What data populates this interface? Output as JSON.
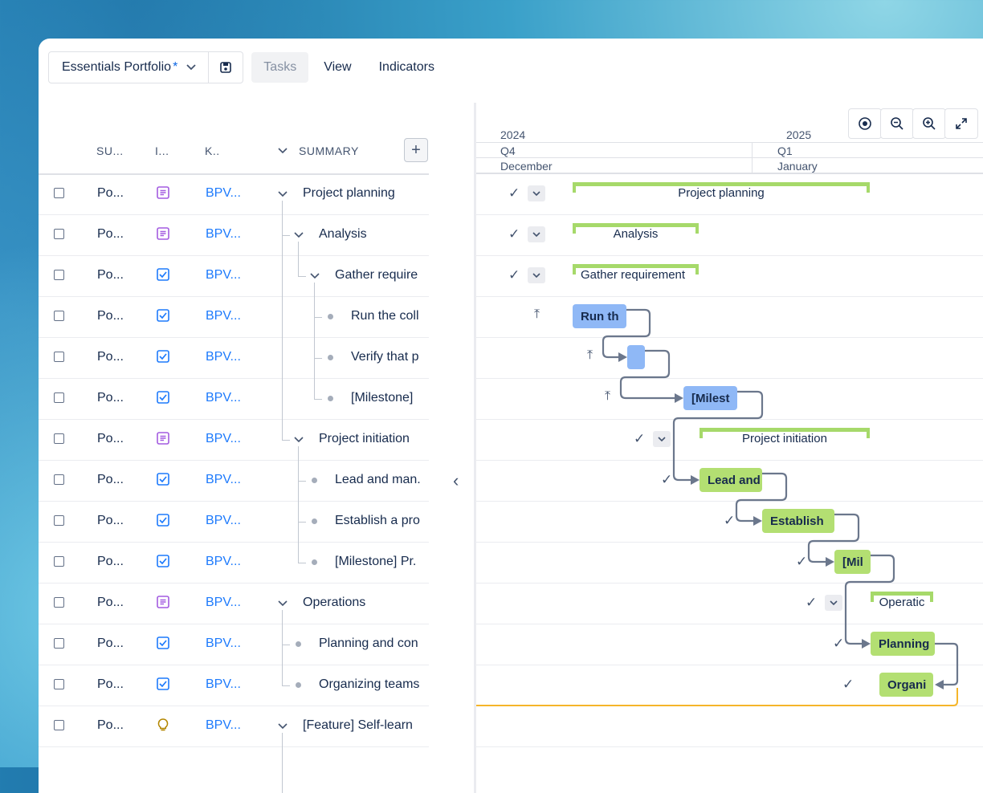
{
  "toolbar": {
    "portfolio_name": "Essentials Portfolio",
    "unsaved_marker": "*",
    "tabs": [
      "Tasks",
      "View",
      "Indicators"
    ]
  },
  "table": {
    "headers": [
      "SU...",
      "I...",
      "K..",
      "SUMMARY"
    ],
    "add_label": "+",
    "collapse_glyph": "‹",
    "rows": [
      {
        "su": "Po...",
        "icon": "epic-icon",
        "key": "BPV...",
        "summary": "Project planning"
      },
      {
        "su": "Po...",
        "icon": "epic-icon",
        "key": "BPV...",
        "summary": "Analysis"
      },
      {
        "su": "Po...",
        "icon": "task-icon",
        "key": "BPV...",
        "summary": "Gather require"
      },
      {
        "su": "Po...",
        "icon": "task-icon",
        "key": "BPV...",
        "summary": "Run the coll"
      },
      {
        "su": "Po...",
        "icon": "task-icon",
        "key": "BPV...",
        "summary": "Verify that p"
      },
      {
        "su": "Po...",
        "icon": "task-icon",
        "key": "BPV...",
        "summary": "[Milestone]"
      },
      {
        "su": "Po...",
        "icon": "epic-icon",
        "key": "BPV...",
        "summary": "Project initiation"
      },
      {
        "su": "Po...",
        "icon": "task-icon",
        "key": "BPV...",
        "summary": "Lead and man."
      },
      {
        "su": "Po...",
        "icon": "task-icon",
        "key": "BPV...",
        "summary": "Establish a pro"
      },
      {
        "su": "Po...",
        "icon": "task-icon",
        "key": "BPV...",
        "summary": "[Milestone] Pr."
      },
      {
        "su": "Po...",
        "icon": "epic-icon",
        "key": "BPV...",
        "summary": "Operations"
      },
      {
        "su": "Po...",
        "icon": "task-icon",
        "key": "BPV...",
        "summary": "Planning and con"
      },
      {
        "su": "Po...",
        "icon": "task-icon",
        "key": "BPV...",
        "summary": "Organizing teams"
      },
      {
        "su": "Po...",
        "icon": "idea-icon",
        "key": "BPV...",
        "summary": "[Feature] Self-learn"
      }
    ]
  },
  "timeline": {
    "years": [
      "2024",
      "2025"
    ],
    "quarters": [
      "Q4",
      "Q1"
    ],
    "months": [
      "December",
      "January"
    ],
    "bars": [
      "Project planning",
      "Analysis",
      "Gather requirement",
      "Run th",
      "",
      "[Milest",
      "Project initiation",
      "Lead and",
      "Establish",
      "[Mil",
      "Operatic",
      "Planning",
      "Organi"
    ]
  },
  "colors": {
    "task_blue": "#8fb8f6",
    "task_green": "#b3df72",
    "summary_bracket": "#a6d96a",
    "link": "#1d7afc",
    "critical_path": "#f5b52a"
  }
}
